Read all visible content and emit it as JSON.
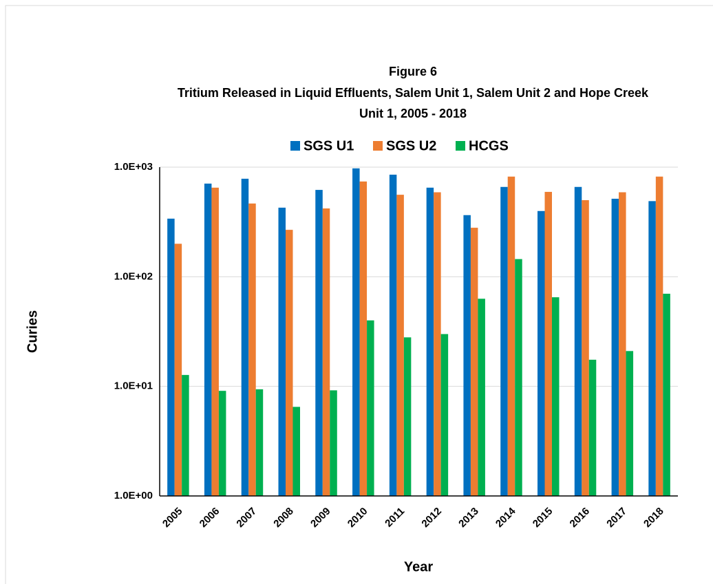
{
  "chart_data": {
    "type": "bar",
    "title": "Figure 6",
    "subtitle": "Tritium Released in Liquid Effluents, Salem Unit 1, Salem Unit 2 and Hope Creek Unit 1, 2005 - 2018",
    "x_label": "Year",
    "y_label": "Curies",
    "categories": [
      "2005",
      "2006",
      "2007",
      "2008",
      "2009",
      "2010",
      "2011",
      "2012",
      "2013",
      "2014",
      "2015",
      "2016",
      "2017",
      "2018"
    ],
    "series": [
      {
        "name": "SGS U1",
        "color": "#0070c0",
        "values": [
          339,
          708,
          784,
          427,
          620,
          975,
          854,
          650,
          365,
          660,
          398,
          660,
          515,
          490
        ]
      },
      {
        "name": "SGS U2",
        "color": "#ed7d31",
        "values": [
          200,
          650,
          466,
          268,
          420,
          740,
          560,
          590,
          280,
          820,
          595,
          500,
          590,
          820
        ]
      },
      {
        "name": "HCGS",
        "color": "#00b050",
        "values": [
          12.7,
          9.1,
          9.4,
          6.5,
          9.2,
          40,
          28,
          30,
          63,
          145,
          65,
          17.5,
          21,
          70
        ]
      }
    ],
    "ylim": [
      1,
      1000
    ],
    "yscale": "log",
    "yticks": [
      {
        "value": 1,
        "label": "1.0E+00"
      },
      {
        "value": 10,
        "label": "1.0E+01"
      },
      {
        "value": 100,
        "label": "1.0E+02"
      },
      {
        "value": 1000,
        "label": "1.0E+03"
      }
    ],
    "grid": true,
    "legend": "top"
  }
}
